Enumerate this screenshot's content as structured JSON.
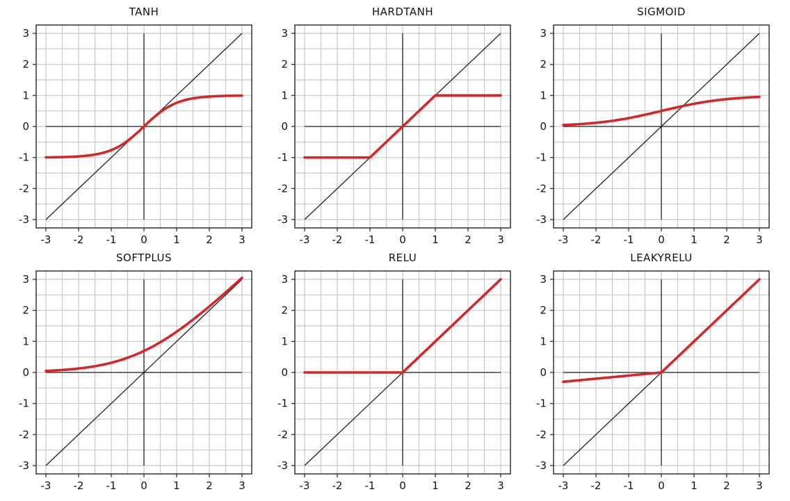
{
  "chart_data": [
    {
      "type": "line",
      "title": "TANH",
      "function": "tanh",
      "xlim": [
        -3,
        3
      ],
      "ylim": [
        -3,
        3
      ],
      "xticks": [
        "-3",
        "-2",
        "-1",
        "0",
        "1",
        "2",
        "3"
      ],
      "yticks": [
        "3",
        "2",
        "1",
        "0",
        "-1",
        "-2",
        "-3"
      ],
      "grid": true,
      "series": [
        {
          "name": "identity",
          "color": "#222222",
          "x": [
            -3,
            3
          ],
          "y": [
            -3,
            3
          ]
        },
        {
          "name": "tanh",
          "color": "#d62728",
          "x": [
            -3,
            -2,
            -1,
            -0.5,
            0,
            0.5,
            1,
            2,
            3
          ],
          "y": [
            -1.0,
            -0.96,
            -0.76,
            -0.46,
            0,
            0.46,
            0.76,
            0.96,
            1.0
          ]
        }
      ]
    },
    {
      "type": "line",
      "title": "HARDTANH",
      "function": "hardtanh",
      "xlim": [
        -3,
        3
      ],
      "ylim": [
        -3,
        3
      ],
      "xticks": [
        "-3",
        "-2",
        "-1",
        "0",
        "1",
        "2",
        "3"
      ],
      "yticks": [
        "3",
        "2",
        "1",
        "0",
        "-1",
        "-2",
        "-3"
      ],
      "grid": true,
      "series": [
        {
          "name": "identity",
          "color": "#222222",
          "x": [
            -3,
            3
          ],
          "y": [
            -3,
            3
          ]
        },
        {
          "name": "hardtanh",
          "color": "#d62728",
          "x": [
            -3,
            -1,
            1,
            3
          ],
          "y": [
            -1,
            -1,
            1,
            1
          ]
        }
      ]
    },
    {
      "type": "line",
      "title": "SIGMOID",
      "function": "sigmoid",
      "xlim": [
        -3,
        3
      ],
      "ylim": [
        -3,
        3
      ],
      "xticks": [
        "-3",
        "-2",
        "-1",
        "0",
        "1",
        "2",
        "3"
      ],
      "yticks": [
        "3",
        "2",
        "1",
        "0",
        "-1",
        "-2",
        "-3"
      ],
      "grid": true,
      "series": [
        {
          "name": "identity",
          "color": "#222222",
          "x": [
            -3,
            3
          ],
          "y": [
            -3,
            3
          ]
        },
        {
          "name": "sigmoid",
          "color": "#d62728",
          "x": [
            -3,
            -2,
            -1,
            0,
            1,
            2,
            3
          ],
          "y": [
            0.05,
            0.12,
            0.27,
            0.5,
            0.73,
            0.88,
            0.95
          ]
        }
      ]
    },
    {
      "type": "line",
      "title": "SOFTPLUS",
      "function": "softplus",
      "xlim": [
        -3,
        3
      ],
      "ylim": [
        -3,
        3
      ],
      "xticks": [
        "-3",
        "-2",
        "-1",
        "0",
        "1",
        "2",
        "3"
      ],
      "yticks": [
        "3",
        "2",
        "1",
        "0",
        "-1",
        "-2",
        "-3"
      ],
      "grid": true,
      "series": [
        {
          "name": "identity",
          "color": "#222222",
          "x": [
            -3,
            3
          ],
          "y": [
            -3,
            3
          ]
        },
        {
          "name": "softplus",
          "color": "#d62728",
          "x": [
            -3,
            -2,
            -1,
            0,
            1,
            2,
            3
          ],
          "y": [
            0.05,
            0.13,
            0.31,
            0.69,
            1.31,
            2.13,
            3.05
          ]
        }
      ]
    },
    {
      "type": "line",
      "title": "RELU",
      "function": "relu",
      "xlim": [
        -3,
        3
      ],
      "ylim": [
        -3,
        3
      ],
      "xticks": [
        "-3",
        "-2",
        "-1",
        "0",
        "1",
        "2",
        "3"
      ],
      "yticks": [
        "3",
        "2",
        "1",
        "0",
        "-1",
        "-2",
        "-3"
      ],
      "grid": true,
      "series": [
        {
          "name": "identity",
          "color": "#222222",
          "x": [
            -3,
            3
          ],
          "y": [
            -3,
            3
          ]
        },
        {
          "name": "relu",
          "color": "#d62728",
          "x": [
            -3,
            0,
            3
          ],
          "y": [
            0,
            0,
            3
          ]
        }
      ]
    },
    {
      "type": "line",
      "title": "LEAKYRELU",
      "function": "leakyrelu",
      "xlim": [
        -3,
        3
      ],
      "ylim": [
        -3,
        3
      ],
      "xticks": [
        "-3",
        "-2",
        "-1",
        "0",
        "1",
        "2",
        "3"
      ],
      "yticks": [
        "3",
        "2",
        "1",
        "0",
        "-1",
        "-2",
        "-3"
      ],
      "grid": true,
      "series": [
        {
          "name": "identity",
          "color": "#222222",
          "x": [
            -3,
            3
          ],
          "y": [
            -3,
            3
          ]
        },
        {
          "name": "leakyrelu",
          "color": "#d62728",
          "x": [
            -3,
            0,
            3
          ],
          "y": [
            -0.3,
            0,
            3
          ]
        }
      ]
    }
  ]
}
